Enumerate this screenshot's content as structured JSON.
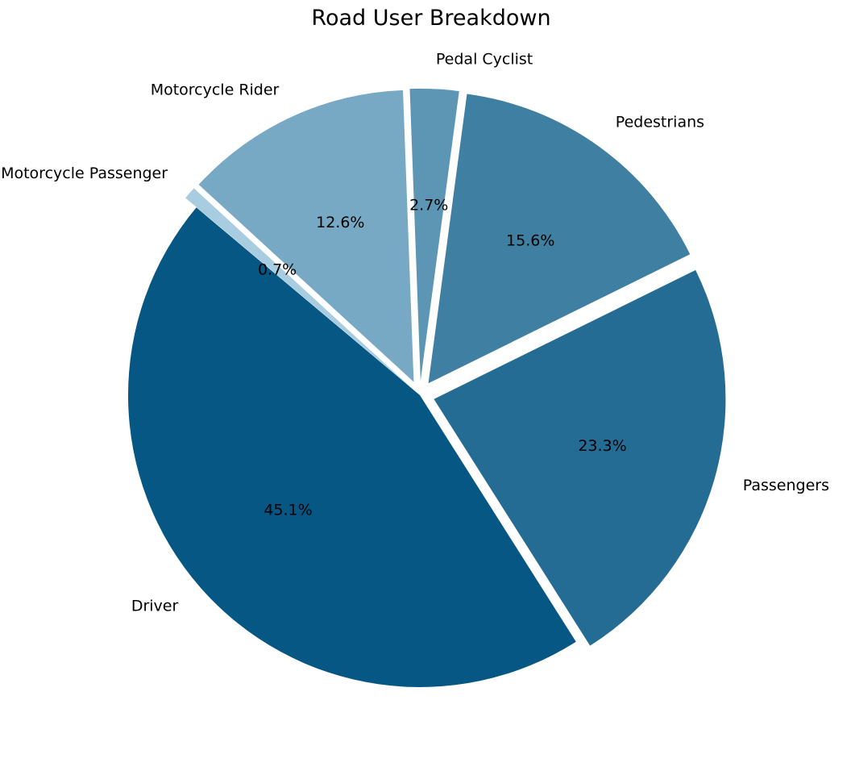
{
  "chart_data": {
    "type": "pie",
    "title": "Road User Breakdown",
    "categories": [
      "Driver",
      "Passengers",
      "Pedestrians",
      "Pedal Cyclist",
      "Motorcycle Rider",
      "Motorcycle Passenger"
    ],
    "values": [
      45.1,
      23.3,
      15.6,
      2.7,
      12.6,
      0.7
    ],
    "percent_labels": [
      "45.1%",
      "23.3%",
      "15.6%",
      "2.7%",
      "12.6%",
      "0.7%"
    ],
    "colors": [
      "#065784",
      "#256c94",
      "#3f7fa2",
      "#5d96b5",
      "#78a9c4",
      "#a9cde0"
    ],
    "exploded": [
      false,
      true,
      true,
      true,
      true,
      true
    ],
    "start_angle_deg": 140,
    "direction": "counterclockwise",
    "legend": "none"
  }
}
